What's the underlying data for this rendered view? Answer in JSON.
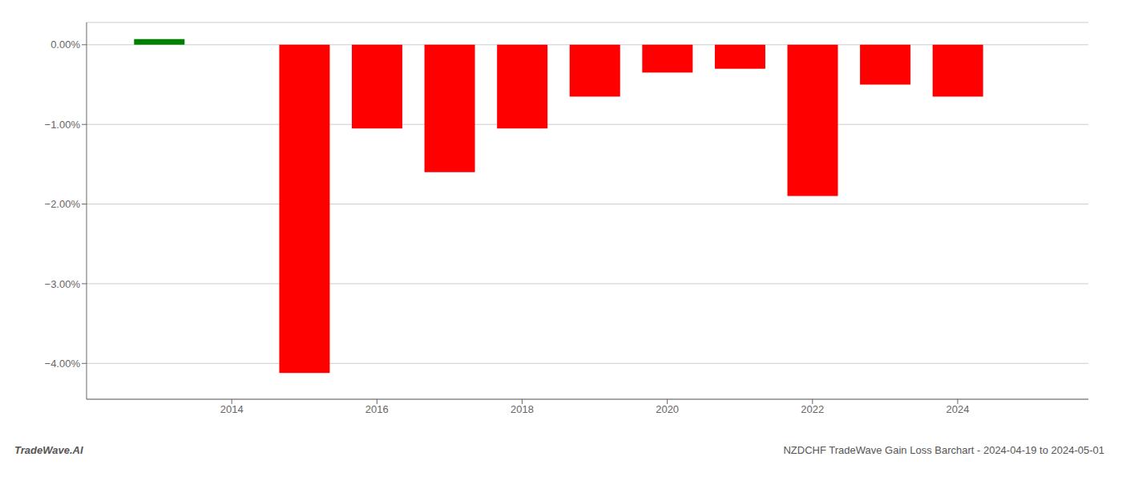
{
  "chart_data": {
    "type": "bar",
    "x": [
      2013,
      2015,
      2016,
      2017,
      2018,
      2019,
      2020,
      2021,
      2022,
      2023,
      2024
    ],
    "values": [
      0.07,
      -4.12,
      -1.05,
      -1.6,
      -1.05,
      -0.65,
      -0.35,
      -0.3,
      -1.9,
      -0.5,
      -0.65
    ],
    "colors": [
      "#008000",
      "#ff0000",
      "#ff0000",
      "#ff0000",
      "#ff0000",
      "#ff0000",
      "#ff0000",
      "#ff0000",
      "#ff0000",
      "#ff0000",
      "#ff0000"
    ],
    "xlim": [
      2012.0,
      2025.8
    ],
    "xticks": [
      2014,
      2016,
      2018,
      2020,
      2022,
      2024
    ],
    "ylim": [
      -4.45,
      0.28
    ],
    "yticks": [
      {
        "value": 0.0,
        "label": "0.00%"
      },
      {
        "value": -1.0,
        "label": "−1.00%"
      },
      {
        "value": -2.0,
        "label": "−2.00%"
      },
      {
        "value": -3.0,
        "label": "−3.00%"
      },
      {
        "value": -4.0,
        "label": "−4.00%"
      }
    ],
    "grid": true,
    "annotations": [
      "TradeWave.AI",
      "NZDCHF TradeWave Gain Loss Barchart - 2024-04-19 to 2024-05-01"
    ]
  }
}
